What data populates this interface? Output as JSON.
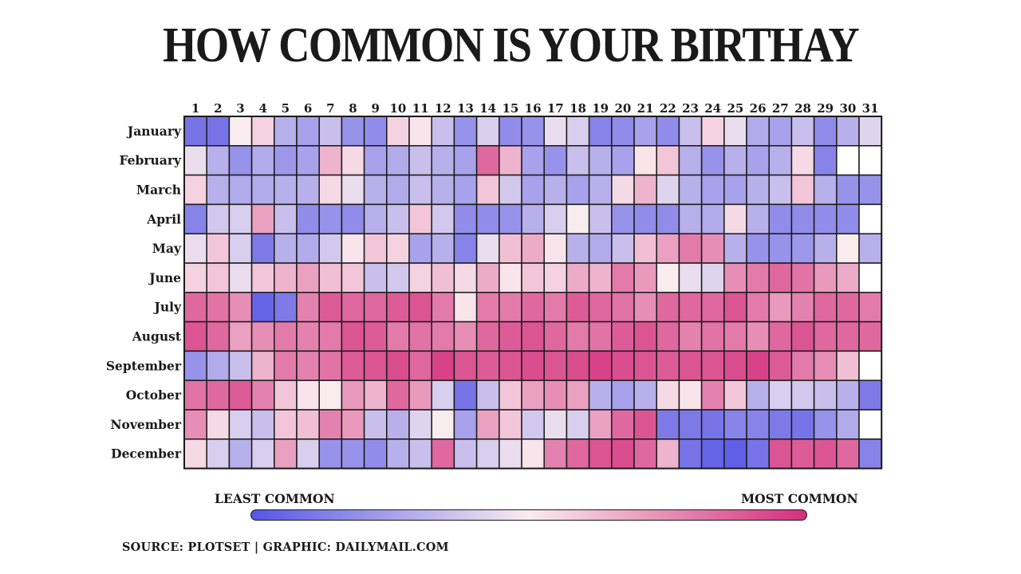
{
  "title": "HOW COMMON IS YOUR BIRTHAY",
  "legend": {
    "least": "LEAST COMMON",
    "most": "MOST COMMON"
  },
  "source": "SOURCE:  PLOTSET  |  GRAPHIC: DAILYMAIL.COM",
  "colors": {
    "least": "#5656e6",
    "mid": "#f9ecef",
    "most": "#d42f7c",
    "empty": "#ffffff",
    "border": "#1a1a1a"
  },
  "chart_data": {
    "type": "heatmap",
    "title": "HOW COMMON IS YOUR BIRTHAY",
    "value_scale": "relative frequency, 0 = least common, 1 = most common (read from colour)",
    "columns": [
      "1",
      "2",
      "3",
      "4",
      "5",
      "6",
      "7",
      "8",
      "9",
      "10",
      "11",
      "12",
      "13",
      "14",
      "15",
      "16",
      "17",
      "18",
      "19",
      "20",
      "21",
      "22",
      "23",
      "24",
      "25",
      "26",
      "27",
      "28",
      "29",
      "30",
      "31"
    ],
    "rows": [
      "January",
      "February",
      "March",
      "April",
      "May",
      "June",
      "July",
      "August",
      "September",
      "October",
      "November",
      "December"
    ],
    "values": [
      [
        0.1,
        0.1,
        0.5,
        0.57,
        0.3,
        0.25,
        0.35,
        0.2,
        0.18,
        0.57,
        0.52,
        0.35,
        0.2,
        0.4,
        0.18,
        0.2,
        0.45,
        0.4,
        0.15,
        0.18,
        0.25,
        0.18,
        0.35,
        0.57,
        0.45,
        0.28,
        0.25,
        0.35,
        0.18,
        0.3,
        0.42
      ],
      [
        0.45,
        0.3,
        0.2,
        0.28,
        0.22,
        0.25,
        0.65,
        0.55,
        0.25,
        0.28,
        0.35,
        0.3,
        0.25,
        0.85,
        0.65,
        0.25,
        0.2,
        0.35,
        0.3,
        0.25,
        0.52,
        0.6,
        0.3,
        0.2,
        0.3,
        0.25,
        0.3,
        0.55,
        0.15,
        null,
        null
      ],
      [
        0.57,
        0.3,
        0.28,
        0.28,
        0.3,
        0.3,
        0.55,
        0.45,
        0.3,
        0.28,
        0.35,
        0.3,
        0.25,
        0.6,
        0.38,
        0.25,
        0.3,
        0.25,
        0.3,
        0.55,
        0.65,
        0.42,
        0.3,
        0.25,
        0.25,
        0.3,
        0.35,
        0.6,
        0.3,
        0.2,
        0.2
      ],
      [
        0.15,
        0.38,
        0.4,
        0.7,
        0.35,
        0.18,
        0.2,
        0.18,
        0.3,
        0.35,
        0.6,
        0.38,
        0.18,
        0.18,
        0.2,
        0.3,
        0.4,
        0.5,
        0.35,
        0.2,
        0.18,
        0.18,
        0.3,
        0.28,
        0.55,
        0.3,
        0.18,
        0.18,
        0.18,
        0.18,
        null
      ],
      [
        0.45,
        0.6,
        0.4,
        0.12,
        0.3,
        0.28,
        0.38,
        0.52,
        0.6,
        0.57,
        0.25,
        0.3,
        0.15,
        0.45,
        0.62,
        0.67,
        0.52,
        0.3,
        0.28,
        0.35,
        0.62,
        0.7,
        0.8,
        0.75,
        0.3,
        0.2,
        0.2,
        0.22,
        0.3,
        0.5,
        0.3
      ],
      [
        0.57,
        0.6,
        0.45,
        0.6,
        0.65,
        0.7,
        0.62,
        0.6,
        0.35,
        0.38,
        0.57,
        0.62,
        0.55,
        0.67,
        0.52,
        0.6,
        0.57,
        0.67,
        0.65,
        0.8,
        0.72,
        0.5,
        0.45,
        0.42,
        0.75,
        0.8,
        0.85,
        0.82,
        0.72,
        0.67,
        null
      ],
      [
        0.85,
        0.82,
        0.75,
        0.05,
        0.12,
        0.78,
        0.88,
        0.85,
        0.85,
        0.88,
        0.9,
        0.8,
        0.52,
        0.8,
        0.8,
        0.85,
        0.8,
        0.88,
        0.85,
        0.82,
        0.75,
        0.85,
        0.85,
        0.85,
        0.9,
        0.8,
        0.72,
        0.78,
        0.85,
        0.85,
        0.8
      ],
      [
        0.9,
        0.85,
        0.7,
        0.75,
        0.8,
        0.78,
        0.8,
        0.9,
        0.88,
        0.8,
        0.82,
        0.8,
        0.75,
        0.85,
        0.88,
        0.9,
        0.85,
        0.8,
        0.82,
        0.88,
        0.9,
        0.85,
        0.78,
        0.82,
        0.8,
        0.75,
        0.85,
        0.9,
        0.85,
        0.85,
        0.85
      ],
      [
        0.2,
        0.28,
        0.35,
        0.65,
        0.8,
        0.78,
        0.82,
        0.88,
        0.9,
        0.92,
        0.85,
        0.95,
        0.9,
        0.88,
        0.9,
        0.92,
        0.9,
        0.92,
        0.95,
        0.92,
        0.9,
        0.88,
        0.9,
        0.9,
        0.92,
        0.95,
        0.88,
        0.8,
        0.75,
        0.62,
        null
      ],
      [
        0.82,
        0.85,
        0.88,
        0.78,
        0.6,
        0.52,
        0.5,
        0.72,
        0.65,
        0.85,
        0.72,
        0.4,
        0.1,
        0.35,
        0.6,
        0.7,
        0.75,
        0.7,
        0.3,
        0.25,
        0.3,
        0.55,
        0.52,
        0.78,
        0.6,
        0.3,
        0.4,
        0.38,
        0.35,
        0.3,
        0.12
      ],
      [
        0.75,
        0.55,
        0.4,
        0.35,
        0.6,
        0.62,
        0.78,
        0.72,
        0.35,
        0.3,
        0.42,
        0.5,
        0.25,
        0.7,
        0.6,
        0.38,
        0.45,
        0.4,
        0.7,
        0.85,
        0.9,
        0.12,
        0.12,
        0.1,
        0.15,
        0.15,
        0.12,
        0.1,
        0.2,
        0.28,
        null
      ],
      [
        0.55,
        0.4,
        0.3,
        0.4,
        0.7,
        0.4,
        0.2,
        0.2,
        0.18,
        0.3,
        0.35,
        0.85,
        0.35,
        0.4,
        0.45,
        0.52,
        0.78,
        0.85,
        0.9,
        0.92,
        0.85,
        0.65,
        0.1,
        0.05,
        0.03,
        0.1,
        0.9,
        0.88,
        0.9,
        0.85,
        0.15
      ]
    ]
  }
}
